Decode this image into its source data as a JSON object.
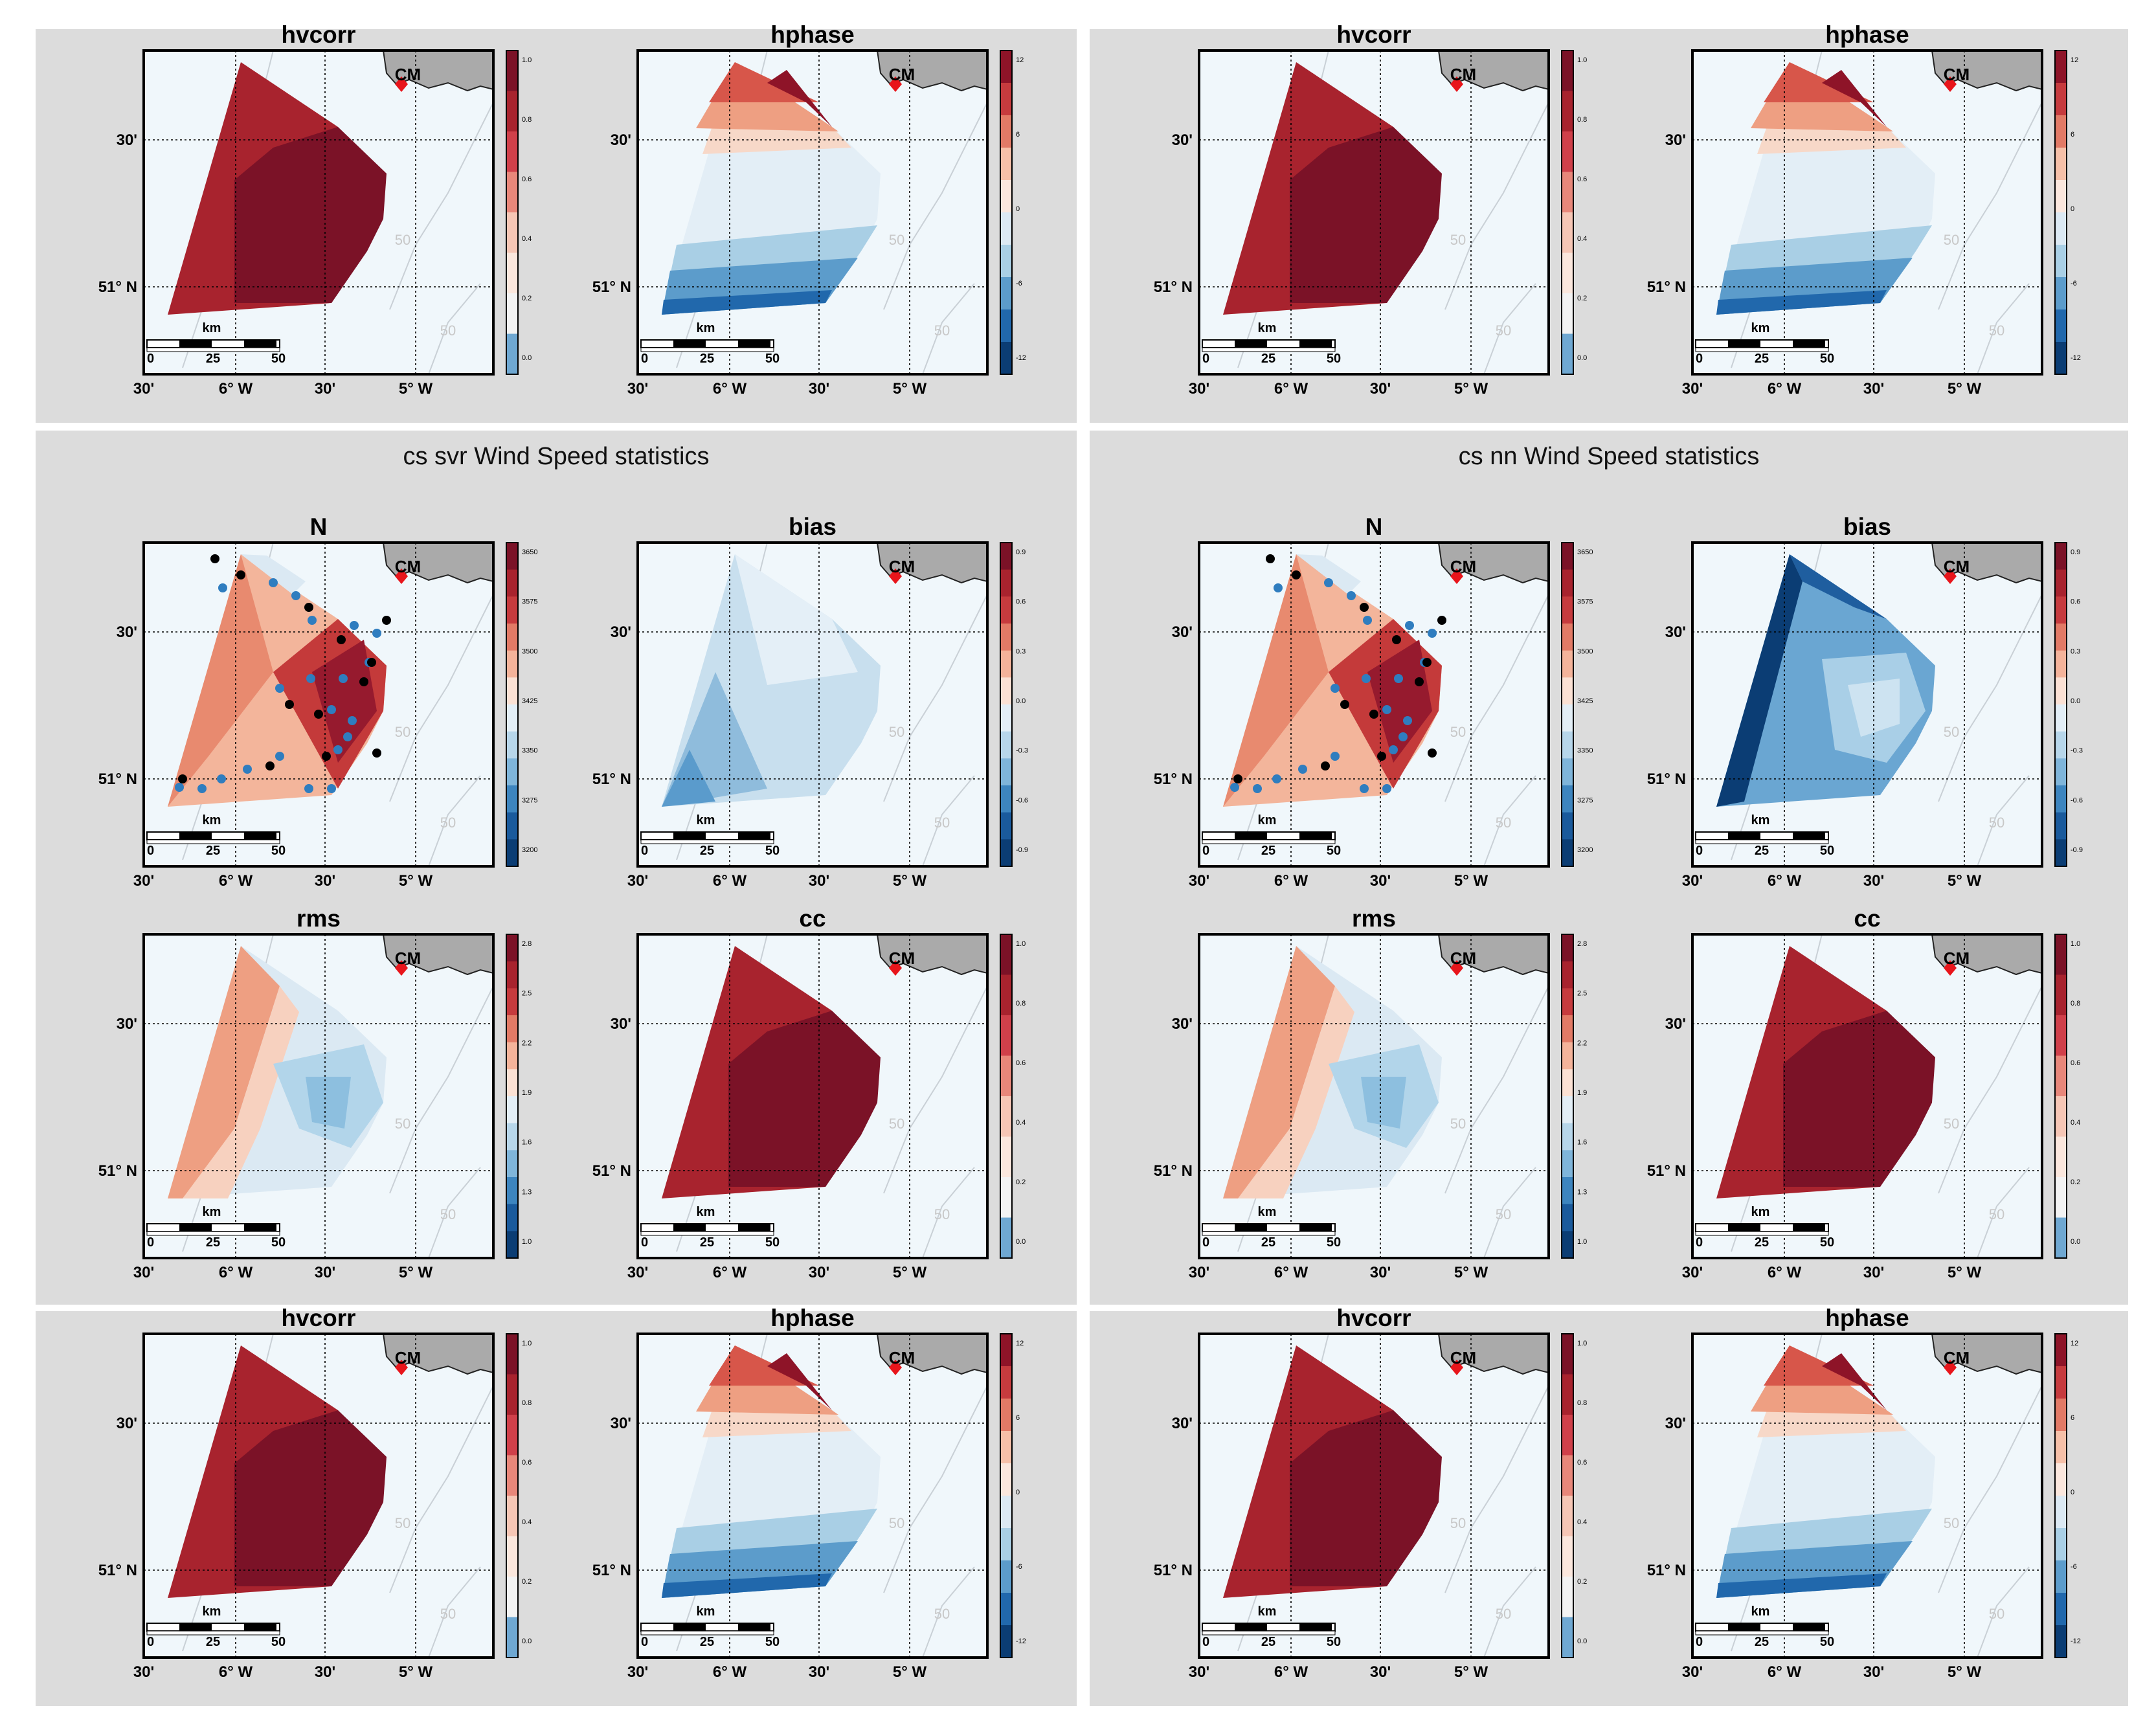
{
  "panels": [
    {
      "title": ""
    },
    {
      "title": ""
    },
    {
      "title": "cs svr Wind Speed statistics"
    },
    {
      "title": "cs nn Wind Speed statistics"
    },
    {
      "title": ""
    },
    {
      "title": ""
    }
  ],
  "map_common": {
    "lon_labels": [
      "30'",
      "6° W",
      "30'",
      "5° W"
    ],
    "lat_labels": [
      "30'",
      "51° N"
    ],
    "station": "CM",
    "scalebar_unit": "km",
    "scalebar_ticks": [
      "0",
      "25",
      "50"
    ],
    "depth_label": "50"
  },
  "maps": [
    {
      "title": "hvcorr",
      "cb": [
        "1.0",
        "0.8",
        "0.6",
        "0.4",
        "0.2",
        "0.0"
      ],
      "scheme": "pos"
    },
    {
      "title": "hphase",
      "cb": [
        "12",
        "6",
        "0",
        "-6",
        "-12"
      ],
      "scheme": "div"
    },
    {
      "title": "hvcorr",
      "cb": [
        "1.0",
        "0.8",
        "0.6",
        "0.4",
        "0.2",
        "0.0"
      ],
      "scheme": "pos"
    },
    {
      "title": "hphase",
      "cb": [
        "12",
        "6",
        "0",
        "-6",
        "-12"
      ],
      "scheme": "div"
    },
    {
      "title": "N",
      "cb": [
        "3650",
        "3575",
        "3500",
        "3425",
        "3350",
        "3275",
        "3200"
      ],
      "scheme": "N"
    },
    {
      "title": "bias",
      "cb": [
        "0.9",
        "0.6",
        "0.3",
        "0.0",
        "-0.3",
        "-0.6",
        "-0.9"
      ],
      "scheme": "bias1"
    },
    {
      "title": "N",
      "cb": [
        "3650",
        "3575",
        "3500",
        "3425",
        "3350",
        "3275",
        "3200"
      ],
      "scheme": "N"
    },
    {
      "title": "bias",
      "cb": [
        "0.9",
        "0.6",
        "0.3",
        "0.0",
        "-0.3",
        "-0.6",
        "-0.9"
      ],
      "scheme": "bias2"
    },
    {
      "title": "rms",
      "cb": [
        "2.8",
        "2.5",
        "2.2",
        "1.9",
        "1.6",
        "1.3",
        "1.0"
      ],
      "scheme": "rms"
    },
    {
      "title": "cc",
      "cb": [
        "1.0",
        "0.8",
        "0.6",
        "0.4",
        "0.2",
        "0.0"
      ],
      "scheme": "pos"
    },
    {
      "title": "rms",
      "cb": [
        "2.8",
        "2.5",
        "2.2",
        "1.9",
        "1.6",
        "1.3",
        "1.0"
      ],
      "scheme": "rms"
    },
    {
      "title": "cc",
      "cb": [
        "1.0",
        "0.8",
        "0.6",
        "0.4",
        "0.2",
        "0.0"
      ],
      "scheme": "pos"
    },
    {
      "title": "hvcorr",
      "cb": [
        "1.0",
        "0.8",
        "0.6",
        "0.4",
        "0.2",
        "0.0"
      ],
      "scheme": "pos"
    },
    {
      "title": "hphase",
      "cb": [
        "12",
        "6",
        "0",
        "-6",
        "-12"
      ],
      "scheme": "div"
    },
    {
      "title": "hvcorr",
      "cb": [
        "1.0",
        "0.8",
        "0.6",
        "0.4",
        "0.2",
        "0.0"
      ],
      "scheme": "pos"
    },
    {
      "title": "hphase",
      "cb": [
        "12",
        "6",
        "0",
        "-6",
        "-12"
      ],
      "scheme": "div"
    }
  ],
  "colors": {
    "panel_bg": "#dcdcdc",
    "sea": "#f0f7fb",
    "land": "#aaaaaa",
    "dark_red": "#7a0f22",
    "red": "#a8202c",
    "dark_blue": "#0b3d74",
    "station_marker": "#e8151b",
    "dot_blue": "#2f7dbf",
    "dot_black": "#000000"
  }
}
